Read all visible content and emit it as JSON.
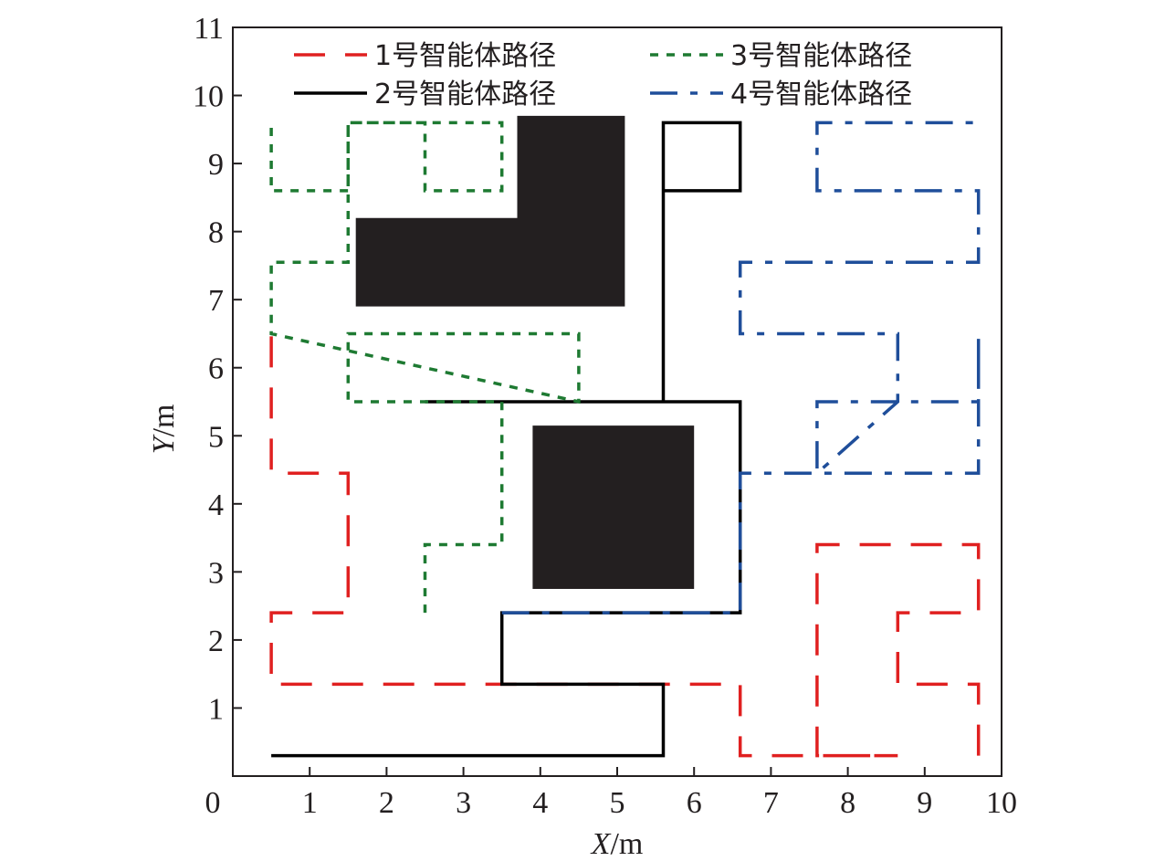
{
  "chart_data": {
    "type": "line",
    "xlabel_var": "X",
    "xlabel_unit": "/m",
    "ylabel_var": "Y",
    "ylabel_unit": "/m",
    "xlim": [
      0,
      10
    ],
    "ylim": [
      0,
      11
    ],
    "x_ticks": [
      0,
      1,
      2,
      3,
      4,
      5,
      6,
      7,
      8,
      9,
      10
    ],
    "y_ticks": [
      1,
      2,
      3,
      4,
      5,
      6,
      7,
      8,
      9,
      10,
      11
    ],
    "origin_label": "0",
    "grid": false,
    "legend_position": "top",
    "obstacle_color": "#231f20",
    "obstacles": [
      {
        "polygon": [
          [
            1.6,
            6.9
          ],
          [
            5.1,
            6.9
          ],
          [
            5.1,
            9.7
          ],
          [
            3.7,
            9.7
          ],
          [
            3.7,
            8.2
          ],
          [
            1.6,
            8.2
          ]
        ]
      },
      {
        "polygon": [
          [
            3.9,
            2.75
          ],
          [
            6.0,
            2.75
          ],
          [
            6.0,
            5.15
          ],
          [
            3.9,
            5.15
          ]
        ]
      }
    ],
    "series": [
      {
        "name": "1号智能体路径",
        "color": "#e02020",
        "dash": "dashed",
        "points": [
          [
            9.7,
            0.3
          ],
          [
            9.7,
            1.35
          ],
          [
            8.65,
            1.35
          ],
          [
            8.65,
            2.4
          ],
          [
            9.7,
            2.4
          ],
          [
            9.7,
            3.4
          ],
          [
            7.6,
            3.4
          ],
          [
            7.6,
            0.3
          ],
          [
            8.65,
            0.3
          ],
          [
            6.6,
            0.3
          ],
          [
            6.6,
            1.35
          ],
          [
            0.5,
            1.35
          ],
          [
            0.5,
            2.4
          ],
          [
            1.5,
            2.4
          ],
          [
            1.5,
            4.45
          ],
          [
            0.5,
            4.45
          ],
          [
            0.5,
            6.5
          ]
        ]
      },
      {
        "name": "2号智能体路径",
        "color": "#000000",
        "dash": "solid",
        "points": [
          [
            0.5,
            0.3
          ],
          [
            5.6,
            0.3
          ],
          [
            5.6,
            1.35
          ],
          [
            3.5,
            1.35
          ],
          [
            3.5,
            2.4
          ],
          [
            6.6,
            2.4
          ],
          [
            6.6,
            5.5
          ],
          [
            2.5,
            5.5
          ],
          [
            5.6,
            5.5
          ],
          [
            5.6,
            9.6
          ],
          [
            6.6,
            9.6
          ],
          [
            6.6,
            8.6
          ],
          [
            5.6,
            8.6
          ]
        ]
      },
      {
        "name": "3号智能体路径",
        "color": "#1e7a32",
        "dash": "dotted",
        "points": [
          [
            2.5,
            2.4
          ],
          [
            2.5,
            3.4
          ],
          [
            3.5,
            3.4
          ],
          [
            3.5,
            5.5
          ],
          [
            2.5,
            5.5
          ],
          [
            1.5,
            5.5
          ],
          [
            1.5,
            6.5
          ],
          [
            4.5,
            6.5
          ],
          [
            4.5,
            5.5
          ],
          [
            0.5,
            6.5
          ],
          [
            0.5,
            7.55
          ],
          [
            1.5,
            7.55
          ],
          [
            1.5,
            9.6
          ],
          [
            3.5,
            9.6
          ],
          [
            3.5,
            8.6
          ],
          [
            2.5,
            8.6
          ],
          [
            2.5,
            9.6
          ],
          [
            1.5,
            9.6
          ],
          [
            1.5,
            8.6
          ],
          [
            0.5,
            8.6
          ],
          [
            0.5,
            9.6
          ]
        ]
      },
      {
        "name": "4号智能体路径",
        "color": "#1f4e9a",
        "dash": "dashdot",
        "points": [
          [
            3.5,
            2.4
          ],
          [
            6.6,
            2.4
          ],
          [
            6.6,
            4.45
          ],
          [
            9.7,
            4.45
          ],
          [
            9.7,
            6.5
          ],
          [
            9.7,
            5.5
          ],
          [
            7.6,
            5.5
          ],
          [
            7.6,
            4.45
          ],
          [
            8.65,
            5.5
          ],
          [
            8.65,
            6.5
          ],
          [
            6.6,
            6.5
          ],
          [
            6.6,
            7.55
          ],
          [
            9.7,
            7.55
          ],
          [
            9.7,
            8.6
          ],
          [
            7.6,
            8.6
          ],
          [
            7.6,
            9.6
          ],
          [
            9.7,
            9.6
          ]
        ]
      }
    ]
  }
}
